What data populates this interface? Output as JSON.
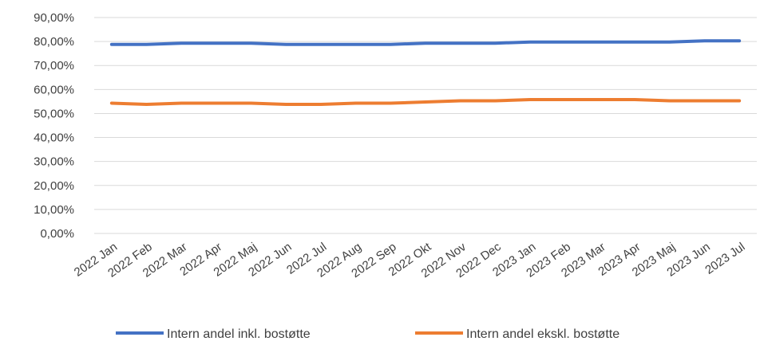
{
  "chart_data": {
    "type": "line",
    "categories": [
      "2022 Jan",
      "2022 Feb",
      "2022 Mar",
      "2022 Apr",
      "2022 Maj",
      "2022 Jun",
      "2022 Jul",
      "2022 Aug",
      "2022 Sep",
      "2022 Okt",
      "2022 Nov",
      "2022 Dec",
      "2023 Jan",
      "2023 Feb",
      "2023 Mar",
      "2023 Apr",
      "2023 Maj",
      "2023 Jun",
      "2023 Jul"
    ],
    "y_ticks": [
      "0,00%",
      "10,00%",
      "20,00%",
      "30,00%",
      "40,00%",
      "50,00%",
      "60,00%",
      "70,00%",
      "80,00%",
      "90,00%"
    ],
    "ylim": [
      0,
      90
    ],
    "grid": true,
    "legend_position": "bottom",
    "series": [
      {
        "name": "Intern andel inkl. bostøtte",
        "color": "#4472c4",
        "values": [
          78.8,
          78.8,
          79.3,
          79.3,
          79.3,
          78.8,
          78.8,
          78.8,
          78.8,
          79.3,
          79.3,
          79.3,
          79.8,
          79.8,
          79.8,
          79.8,
          79.8,
          80.3,
          80.3
        ]
      },
      {
        "name": "Intern andel ekskl. bostøtte",
        "color": "#ed7d31",
        "values": [
          54.3,
          53.8,
          54.3,
          54.3,
          54.3,
          53.8,
          53.8,
          54.3,
          54.3,
          54.8,
          55.3,
          55.3,
          55.8,
          55.8,
          55.8,
          55.8,
          55.3,
          55.3,
          55.3
        ]
      }
    ]
  }
}
